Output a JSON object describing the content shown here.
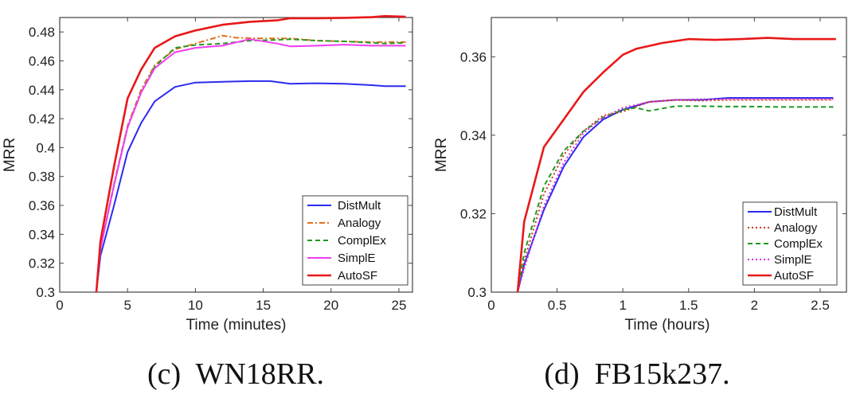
{
  "chart_data": [
    {
      "type": "line",
      "caption": "(c)  WN18RR.",
      "xlabel": "Time (minutes)",
      "ylabel": "MRR",
      "xlim": [
        0,
        26
      ],
      "ylim": [
        0.3,
        0.49
      ],
      "xticks": [
        0,
        5,
        10,
        15,
        20,
        25
      ],
      "xtick_labels": [
        "0",
        "5",
        "10",
        "15",
        "20",
        "25"
      ],
      "yticks": [
        0.3,
        0.32,
        0.34,
        0.36,
        0.38,
        0.4,
        0.42,
        0.44,
        0.46,
        0.48
      ],
      "ytick_labels": [
        "0.3",
        "0.32",
        "0.34",
        "0.36",
        "0.38",
        "0.4",
        "0.42",
        "0.44",
        "0.46",
        "0.48"
      ],
      "legend_position": "bottom-right",
      "series": [
        {
          "name": "DistMult",
          "color": "#2b2bf0",
          "style": "solid",
          "x": [
            2.7,
            3,
            4,
            5,
            6,
            7,
            8.5,
            10,
            12,
            14,
            15.5,
            17,
            19,
            21,
            23,
            24,
            25.5
          ],
          "y": [
            0.3,
            0.325,
            0.36,
            0.397,
            0.417,
            0.432,
            0.442,
            0.445,
            0.4455,
            0.446,
            0.446,
            0.4442,
            0.4445,
            0.4442,
            0.4432,
            0.4425,
            0.4425
          ]
        },
        {
          "name": "Analogy",
          "color": "#e0701c",
          "style": "dashdot",
          "x": [
            2.7,
            3,
            4,
            5,
            6,
            7,
            8.5,
            10,
            12,
            13,
            15,
            17,
            19,
            21,
            23,
            24,
            25.5
          ],
          "y": [
            0.3,
            0.33,
            0.375,
            0.415,
            0.44,
            0.457,
            0.468,
            0.472,
            0.4775,
            0.476,
            0.4755,
            0.4755,
            0.474,
            0.4735,
            0.473,
            0.473,
            0.473
          ]
        },
        {
          "name": "ComplEx",
          "color": "#1f9a1f",
          "style": "dashed",
          "x": [
            2.7,
            3,
            4,
            5,
            6,
            7,
            8.5,
            10,
            12,
            14,
            16,
            17,
            19,
            21,
            23,
            24,
            25.5
          ],
          "y": [
            0.3,
            0.33,
            0.374,
            0.414,
            0.438,
            0.456,
            0.469,
            0.471,
            0.472,
            0.474,
            0.4745,
            0.475,
            0.474,
            0.4735,
            0.4725,
            0.472,
            0.4725
          ]
        },
        {
          "name": "SimplE",
          "color": "#f03cf0",
          "style": "solid",
          "x": [
            2.7,
            3,
            4,
            5,
            6,
            7,
            8.5,
            10,
            12,
            14,
            16,
            17,
            19,
            21,
            23,
            24,
            25.5
          ],
          "y": [
            0.3,
            0.33,
            0.374,
            0.414,
            0.438,
            0.455,
            0.466,
            0.469,
            0.4705,
            0.475,
            0.472,
            0.47,
            0.4705,
            0.4712,
            0.4705,
            0.4705,
            0.4705
          ]
        },
        {
          "name": "AutoSF",
          "color": "#e81818",
          "style": "solid",
          "x": [
            2.7,
            3,
            4,
            5,
            6,
            7,
            8.5,
            10,
            12,
            14,
            16,
            17,
            19,
            21,
            23,
            24,
            25.5
          ],
          "y": [
            0.3,
            0.335,
            0.387,
            0.434,
            0.454,
            0.469,
            0.477,
            0.481,
            0.485,
            0.487,
            0.488,
            0.4895,
            0.4895,
            0.4898,
            0.4902,
            0.491,
            0.4905
          ]
        }
      ]
    },
    {
      "type": "line",
      "caption": "(d)  FB15k237.",
      "xlabel": "Time (hours)",
      "ylabel": "MRR",
      "xlim": [
        0,
        2.7
      ],
      "ylim": [
        0.3,
        0.37
      ],
      "xticks": [
        0,
        0.5,
        1,
        1.5,
        2,
        2.5
      ],
      "xtick_labels": [
        "0",
        "0.5",
        "1",
        "1.5",
        "2",
        "2.5"
      ],
      "yticks": [
        0.3,
        0.32,
        0.34,
        0.36
      ],
      "ytick_labels": [
        "0.3",
        "0.32",
        "0.34",
        "0.36"
      ],
      "legend_position": "bottom-right",
      "series": [
        {
          "name": "DistMult",
          "color": "#2b2bf0",
          "style": "solid",
          "x": [
            0.2,
            0.25,
            0.4,
            0.55,
            0.7,
            0.85,
            1.0,
            1.2,
            1.4,
            1.6,
            1.8,
            2.0,
            2.2,
            2.4,
            2.6
          ],
          "y": [
            0.3,
            0.307,
            0.321,
            0.332,
            0.3395,
            0.344,
            0.3465,
            0.3485,
            0.349,
            0.349,
            0.3495,
            0.3495,
            0.3495,
            0.3495,
            0.3495
          ]
        },
        {
          "name": "Analogy",
          "color": "#c63a16",
          "style": "dotted",
          "x": [
            0.2,
            0.25,
            0.4,
            0.55,
            0.7,
            0.85,
            1.0,
            1.2,
            1.4,
            1.6,
            1.8,
            2.0,
            2.2,
            2.4,
            2.6
          ],
          "y": [
            0.3,
            0.308,
            0.325,
            0.335,
            0.341,
            0.345,
            0.346,
            0.3485,
            0.349,
            0.3488,
            0.349,
            0.349,
            0.349,
            0.349,
            0.349
          ]
        },
        {
          "name": "ComplEx",
          "color": "#1f9a1f",
          "style": "dashed",
          "x": [
            0.2,
            0.25,
            0.4,
            0.55,
            0.7,
            0.85,
            1.0,
            1.1,
            1.2,
            1.4,
            1.6,
            1.8,
            2.0,
            2.2,
            2.4,
            2.6
          ],
          "y": [
            0.3,
            0.31,
            0.327,
            0.336,
            0.341,
            0.3445,
            0.3465,
            0.347,
            0.3462,
            0.3474,
            0.3474,
            0.3473,
            0.3473,
            0.3472,
            0.3472,
            0.3472
          ]
        },
        {
          "name": "SimplE",
          "color": "#e030e0",
          "style": "dotted",
          "x": [
            0.2,
            0.25,
            0.4,
            0.55,
            0.7,
            0.85,
            1.0,
            1.2,
            1.4,
            1.6,
            1.8,
            2.0,
            2.2,
            2.4,
            2.6
          ],
          "y": [
            0.3,
            0.306,
            0.322,
            0.333,
            0.3405,
            0.3445,
            0.347,
            0.3485,
            0.349,
            0.3492,
            0.3492,
            0.3492,
            0.3492,
            0.3492,
            0.3492
          ]
        },
        {
          "name": "AutoSF",
          "color": "#e81818",
          "style": "solid",
          "x": [
            0.2,
            0.25,
            0.4,
            0.55,
            0.7,
            0.85,
            1.0,
            1.1,
            1.3,
            1.5,
            1.7,
            1.9,
            2.1,
            2.3,
            2.5,
            2.62
          ],
          "y": [
            0.3,
            0.318,
            0.337,
            0.344,
            0.351,
            0.356,
            0.3605,
            0.362,
            0.3635,
            0.3645,
            0.3643,
            0.3645,
            0.3648,
            0.3645,
            0.3645,
            0.3645
          ]
        }
      ]
    }
  ]
}
